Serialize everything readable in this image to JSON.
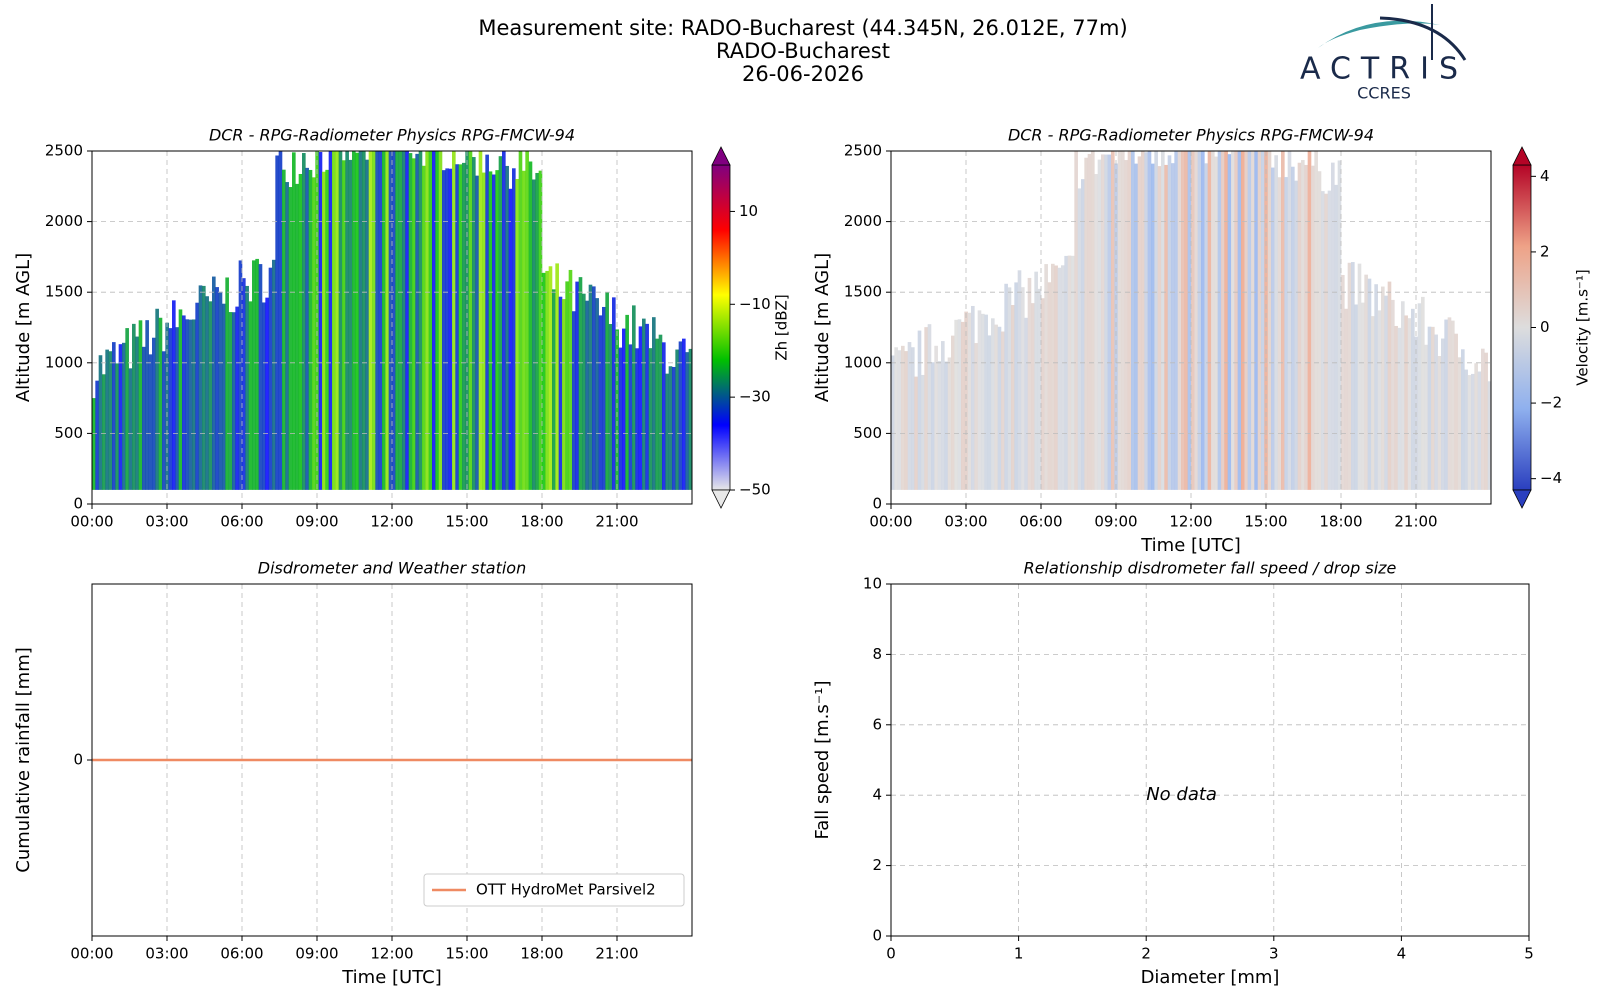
{
  "header": {
    "title": "Measurement site: RADO-Bucharest (44.345N, 26.012E, 77m)",
    "site": "RADO-Bucharest",
    "date": "26-06-2026"
  },
  "logo": {
    "name": "ACTRIS",
    "sub": "CCRES"
  },
  "chart_data": [
    {
      "type": "heatmap",
      "title": "DCR - RPG-Radiometer Physics RPG-FMCW-94",
      "ylabel": "Altitude [m AGL]",
      "xlim": [
        0,
        24
      ],
      "xticks": [
        {
          "value": 0,
          "label": "00:00"
        },
        {
          "value": 3,
          "label": "03:00"
        },
        {
          "value": 6,
          "label": "06:00"
        },
        {
          "value": 9,
          "label": "09:00"
        },
        {
          "value": 12,
          "label": "12:00"
        },
        {
          "value": 15,
          "label": "15:00"
        },
        {
          "value": 18,
          "label": "18:00"
        },
        {
          "value": 21,
          "label": "21:00"
        }
      ],
      "ylim": [
        0,
        2500
      ],
      "yticks": [
        0,
        500,
        1000,
        1500,
        2000,
        2500
      ],
      "grid": true,
      "colorbar": {
        "label": "Zh [dBZ]",
        "lim": [
          -50,
          20
        ],
        "ticks": [
          {
            "value": 10,
            "label": "10"
          },
          {
            "value": -10,
            "label": "−10"
          },
          {
            "value": -30,
            "label": "−30"
          },
          {
            "value": -50,
            "label": "−50"
          }
        ],
        "colors": [
          "#e8e8e8",
          "#0000ff",
          "#00c000",
          "#ffff00",
          "#ff0000",
          "#800080"
        ]
      }
    },
    {
      "type": "heatmap",
      "title": "DCR - RPG-Radiometer Physics RPG-FMCW-94",
      "ylabel": "Altitude [m AGL]",
      "xlabel": "Time [UTC]",
      "xlim": [
        0,
        24
      ],
      "xticks": [
        {
          "value": 0,
          "label": "00:00"
        },
        {
          "value": 3,
          "label": "03:00"
        },
        {
          "value": 6,
          "label": "06:00"
        },
        {
          "value": 9,
          "label": "09:00"
        },
        {
          "value": 12,
          "label": "12:00"
        },
        {
          "value": 15,
          "label": "15:00"
        },
        {
          "value": 18,
          "label": "18:00"
        },
        {
          "value": 21,
          "label": "21:00"
        }
      ],
      "ylim": [
        0,
        2500
      ],
      "yticks": [
        0,
        500,
        1000,
        1500,
        2000,
        2500
      ],
      "grid": true,
      "colorbar": {
        "label": "Velocity [m.s⁻¹]",
        "lim": [
          -4.3,
          4.3
        ],
        "ticks": [
          {
            "value": 4,
            "label": "4"
          },
          {
            "value": 2,
            "label": "2"
          },
          {
            "value": 0,
            "label": "0"
          },
          {
            "value": -2,
            "label": "−2"
          },
          {
            "value": -4,
            "label": "−4"
          }
        ],
        "colors": [
          "#2a3fbf",
          "#8fb0ee",
          "#dddddd",
          "#eea287",
          "#b40426"
        ]
      }
    },
    {
      "type": "line",
      "title": "Disdrometer and Weather station",
      "ylabel": "Cumulative rainfall [mm]",
      "xlabel": "Time [UTC]",
      "xlim": [
        0,
        24
      ],
      "xticks": [
        {
          "value": 0,
          "label": "00:00"
        },
        {
          "value": 3,
          "label": "03:00"
        },
        {
          "value": 6,
          "label": "06:00"
        },
        {
          "value": 9,
          "label": "09:00"
        },
        {
          "value": 12,
          "label": "12:00"
        },
        {
          "value": 15,
          "label": "15:00"
        },
        {
          "value": 18,
          "label": "18:00"
        },
        {
          "value": 21,
          "label": "21:00"
        }
      ],
      "ylim": [
        -1,
        1
      ],
      "yticks": [
        0
      ],
      "grid": true,
      "legend": "lower right",
      "x": [
        0,
        24
      ],
      "series": [
        {
          "name": "OTT HydroMet Parsivel2",
          "color": "#ef8a62",
          "values": [
            0,
            0
          ]
        }
      ]
    },
    {
      "type": "scatter",
      "title": "Relationship disdrometer fall speed / drop size",
      "ylabel": "Fall speed [m.s⁻¹]",
      "xlabel": "Diameter [mm]",
      "xlim": [
        0,
        5
      ],
      "xticks": [
        0,
        1,
        2,
        3,
        4,
        5
      ],
      "ylim": [
        0,
        10
      ],
      "yticks": [
        0,
        2,
        4,
        6,
        8,
        10
      ],
      "grid": true,
      "annotation": "No data"
    }
  ]
}
